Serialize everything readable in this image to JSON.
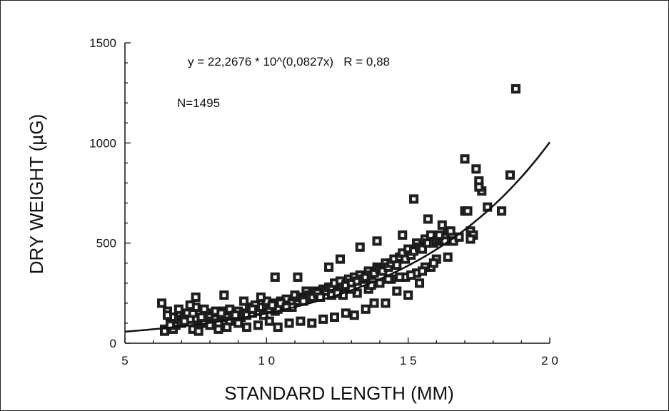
{
  "chart_data": {
    "type": "scatter",
    "title": "",
    "xlabel": "STANDARD LENGTH (MM)",
    "ylabel": "DRY WEIGHT (µG)",
    "xlim": [
      5,
      20
    ],
    "ylim": [
      0,
      1500
    ],
    "x_ticks": [
      5,
      10,
      15,
      20
    ],
    "y_ticks": [
      0,
      500,
      1000,
      1500
    ],
    "x_tick_labels": [
      "5",
      "1 0",
      "1 5",
      "2 0"
    ],
    "y_tick_labels": [
      "0",
      "500",
      "1000",
      "1500"
    ],
    "grid": false,
    "annotations": {
      "equation": "y = 22,2676 * 10^(0,0827x)   R = 0,88",
      "n": "N=1495"
    },
    "fit": {
      "type": "exponential",
      "a": 22.2676,
      "b": 0.0827,
      "x_range": [
        5,
        20
      ]
    },
    "series": [
      {
        "x": [
          6.3,
          6.4,
          6.5,
          6.6,
          6.7,
          6.8,
          6.9,
          7.0,
          7.1,
          7.2,
          7.3,
          7.4,
          7.5,
          7.6,
          7.7,
          7.8,
          7.9,
          8.0,
          8.1,
          8.2,
          8.3,
          8.4,
          8.5,
          8.6,
          8.7,
          8.8,
          8.9,
          9.0,
          9.1,
          9.2,
          9.3,
          9.4,
          9.5,
          9.6,
          9.7,
          9.8,
          9.9,
          10.0,
          10.1,
          10.2,
          10.3,
          10.4,
          10.5,
          10.6,
          10.7,
          10.8,
          10.9,
          11.0,
          11.1,
          11.2,
          11.3,
          11.4,
          11.5,
          11.6,
          11.7,
          11.8,
          11.9,
          12.0,
          12.1,
          12.2,
          12.3,
          12.4,
          12.5,
          12.6,
          12.7,
          12.8,
          12.9,
          13.0,
          13.1,
          13.2,
          13.3,
          13.4,
          13.5,
          13.6,
          13.7,
          13.8,
          13.9,
          14.0,
          14.1,
          14.2,
          14.3,
          14.4,
          14.5,
          14.6,
          14.7,
          14.8,
          14.9,
          15.0,
          15.1,
          15.2,
          15.3,
          15.4,
          15.5,
          15.6,
          15.7,
          15.8,
          15.9,
          16.0,
          16.1,
          16.2,
          16.3,
          16.4,
          16.5,
          16.6,
          16.8,
          17.0,
          17.1,
          17.2,
          17.3,
          17.4,
          17.5,
          17.6,
          17.8,
          18.3,
          18.6,
          18.8,
          6.4,
          6.7,
          7.0,
          7.4,
          7.6,
          8.0,
          8.3,
          8.6,
          9.0,
          9.3,
          9.7,
          10.1,
          10.4,
          10.8,
          11.2,
          11.6,
          12.0,
          12.4,
          12.8,
          13.1,
          13.5,
          13.8,
          14.2,
          14.6,
          15.0,
          15.4,
          15.8,
          16.3,
          6.5,
          6.9,
          7.3,
          7.8,
          8.2,
          8.7,
          9.2,
          9.6,
          10.0,
          10.5,
          10.9,
          11.4,
          11.8,
          12.3,
          12.7,
          13.2,
          13.6,
          14.0,
          14.4,
          14.9,
          15.3,
          15.6,
          16.0,
          16.4,
          17.2,
          6.6,
          7.1,
          7.7,
          8.4,
          8.9,
          9.5,
          10.2,
          10.7,
          11.3,
          11.9,
          12.5,
          13.0,
          13.7,
          14.3,
          14.7,
          15.1,
          15.5,
          15.9,
          16.1,
          16.5,
          17.5,
          7.5,
          8.5,
          9.8,
          10.3,
          11.1,
          12.2,
          12.6,
          13.3,
          13.9,
          14.8,
          15.2,
          15.7,
          16.2,
          17.0
        ],
        "y": [
          200,
          70,
          160,
          100,
          130,
          90,
          120,
          110,
          130,
          150,
          120,
          150,
          180,
          90,
          100,
          110,
          150,
          130,
          110,
          120,
          100,
          140,
          160,
          130,
          110,
          140,
          120,
          160,
          130,
          150,
          140,
          180,
          150,
          170,
          160,
          180,
          140,
          190,
          170,
          200,
          160,
          170,
          210,
          200,
          220,
          190,
          200,
          240,
          210,
          230,
          220,
          260,
          240,
          230,
          260,
          250,
          250,
          270,
          260,
          280,
          280,
          300,
          260,
          310,
          280,
          290,
          320,
          300,
          330,
          310,
          340,
          320,
          330,
          360,
          340,
          350,
          380,
          370,
          360,
          400,
          380,
          400,
          420,
          390,
          430,
          450,
          420,
          470,
          440,
          460,
          500,
          480,
          470,
          520,
          500,
          540,
          500,
          510,
          520,
          520,
          540,
          560,
          510,
          510,
          530,
          660,
          660,
          560,
          540,
          870,
          810,
          760,
          680,
          660,
          840,
          1270,
          60,
          70,
          100,
          70,
          60,
          90,
          70,
          80,
          100,
          80,
          90,
          110,
          80,
          100,
          110,
          100,
          120,
          130,
          150,
          140,
          170,
          200,
          200,
          260,
          240,
          300,
          380,
          510,
          140,
          170,
          190,
          170,
          160,
          170,
          210,
          190,
          210,
          200,
          180,
          220,
          250,
          240,
          240,
          250,
          270,
          300,
          320,
          330,
          350,
          380,
          420,
          430,
          520,
          90,
          110,
          130,
          150,
          140,
          170,
          190,
          180,
          210,
          230,
          250,
          270,
          290,
          320,
          330,
          340,
          360,
          400,
          540,
          560,
          780,
          230,
          240,
          230,
          330,
          330,
          380,
          420,
          480,
          510,
          540,
          720,
          620,
          590,
          920
        ]
      }
    ]
  }
}
